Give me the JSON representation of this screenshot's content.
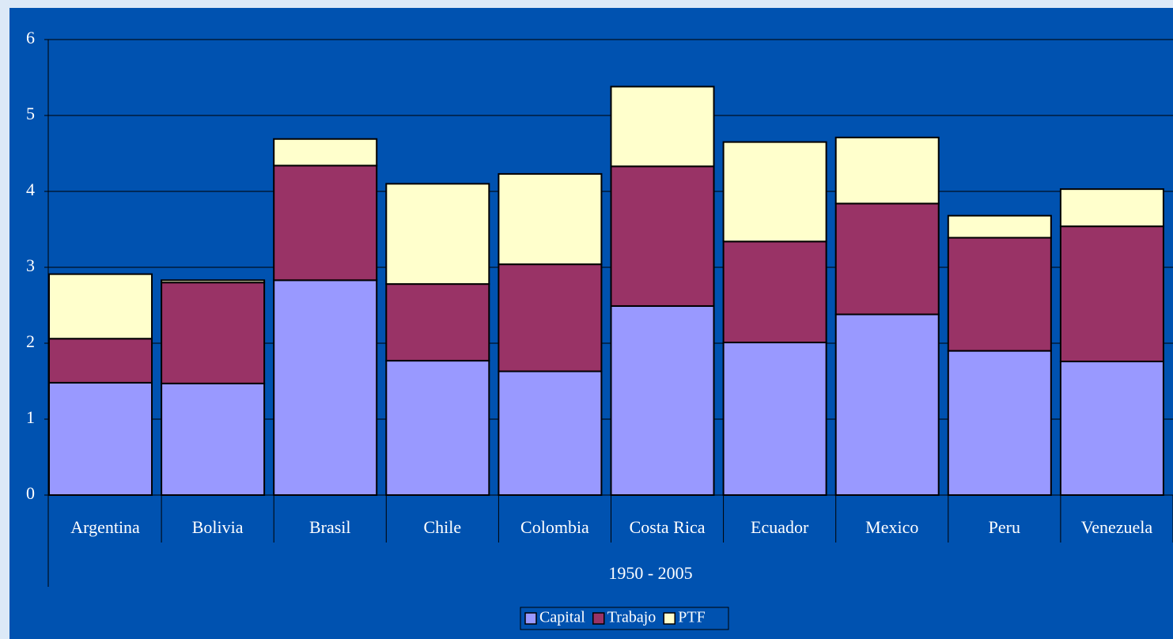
{
  "chart_data": {
    "type": "stacked_bar",
    "categories": [
      "Argentina",
      "Bolivia",
      "Brasil",
      "Chile",
      "Colombia",
      "Costa Rica",
      "Ecuador",
      "Mexico",
      "Peru",
      "Venezuela"
    ],
    "x_label": "1950 - 2005",
    "series": [
      {
        "name": "Capital",
        "color": "#9999ff",
        "values": [
          1.48,
          1.47,
          2.83,
          1.77,
          1.63,
          2.49,
          2.01,
          2.38,
          1.9,
          1.76
        ]
      },
      {
        "name": "Trabajo",
        "color": "#993366",
        "values": [
          0.58,
          1.33,
          1.51,
          1.01,
          1.41,
          1.84,
          1.33,
          1.46,
          1.49,
          1.78
        ]
      },
      {
        "name": "PTF",
        "color": "#ffffcc",
        "values": [
          0.85,
          0.03,
          0.35,
          1.32,
          1.19,
          1.05,
          1.31,
          0.87,
          0.29,
          0.49
        ]
      }
    ],
    "ylim": [
      0,
      6
    ],
    "yticks": [
      0,
      1,
      2,
      3,
      4,
      5,
      6
    ],
    "grid": true,
    "legend": "bottom"
  }
}
